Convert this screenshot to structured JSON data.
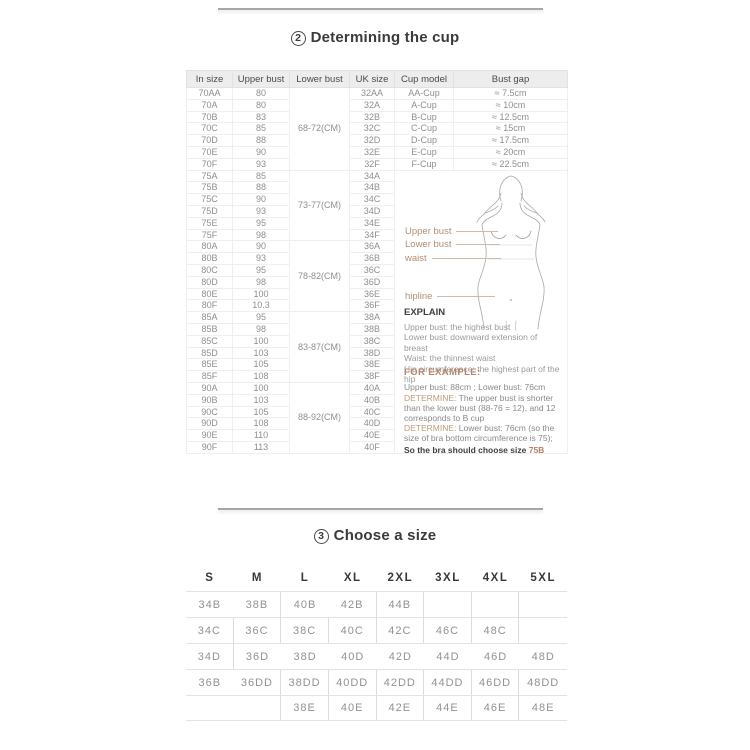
{
  "titles": {
    "cup_num": "2",
    "cup_text": "Determining the cup",
    "size_num": "3",
    "size_text": "Choose a size"
  },
  "cup_table": {
    "headers": [
      "In size",
      "Upper bust",
      "Lower bust",
      "UK size",
      "Cup model",
      "Bust gap"
    ],
    "groups": [
      {
        "lower_bust": "68-72(CM)",
        "rows": [
          {
            "in_size": "70AA",
            "upper_bust": "80",
            "uk_size": "32AA",
            "cup_model": "AA-Cup",
            "bust_gap": "≈  7.5cm"
          },
          {
            "in_size": "70A",
            "upper_bust": "80",
            "uk_size": "32A",
            "cup_model": "A-Cup",
            "bust_gap": "≈  10cm"
          },
          {
            "in_size": "70B",
            "upper_bust": "83",
            "uk_size": "32B",
            "cup_model": "B-Cup",
            "bust_gap": "≈  12.5cm"
          },
          {
            "in_size": "70C",
            "upper_bust": "85",
            "uk_size": "32C",
            "cup_model": "C-Cup",
            "bust_gap": "≈  15cm"
          },
          {
            "in_size": "70D",
            "upper_bust": "88",
            "uk_size": "32D",
            "cup_model": "D-Cup",
            "bust_gap": "≈  17.5cm"
          },
          {
            "in_size": "70E",
            "upper_bust": "90",
            "uk_size": "32E",
            "cup_model": "E-Cup",
            "bust_gap": "≈  20cm"
          },
          {
            "in_size": "70F",
            "upper_bust": "93",
            "uk_size": "32F",
            "cup_model": "F-Cup",
            "bust_gap": "≈  22.5cm"
          }
        ]
      },
      {
        "lower_bust": "73-77(CM)",
        "rows": [
          {
            "in_size": "75A",
            "upper_bust": "85",
            "uk_size": "34A"
          },
          {
            "in_size": "75B",
            "upper_bust": "88",
            "uk_size": "34B"
          },
          {
            "in_size": "75C",
            "upper_bust": "90",
            "uk_size": "34C"
          },
          {
            "in_size": "75D",
            "upper_bust": "93",
            "uk_size": "34D"
          },
          {
            "in_size": "75E",
            "upper_bust": "95",
            "uk_size": "34E"
          },
          {
            "in_size": "75F",
            "upper_bust": "98",
            "uk_size": "34F"
          }
        ]
      },
      {
        "lower_bust": "78-82(CM)",
        "rows": [
          {
            "in_size": "80A",
            "upper_bust": "90",
            "uk_size": "36A"
          },
          {
            "in_size": "80B",
            "upper_bust": "93",
            "uk_size": "36B"
          },
          {
            "in_size": "80C",
            "upper_bust": "95",
            "uk_size": "36C"
          },
          {
            "in_size": "80D",
            "upper_bust": "98",
            "uk_size": "36D"
          },
          {
            "in_size": "80E",
            "upper_bust": "100",
            "uk_size": "36E"
          },
          {
            "in_size": "80F",
            "upper_bust": "10.3",
            "uk_size": "36F"
          }
        ]
      },
      {
        "lower_bust": "83-87(CM)",
        "rows": [
          {
            "in_size": "85A",
            "upper_bust": "95",
            "uk_size": "38A"
          },
          {
            "in_size": "85B",
            "upper_bust": "98",
            "uk_size": "38B"
          },
          {
            "in_size": "85C",
            "upper_bust": "100",
            "uk_size": "38C"
          },
          {
            "in_size": "85D",
            "upper_bust": "103",
            "uk_size": "38D"
          },
          {
            "in_size": "85E",
            "upper_bust": "105",
            "uk_size": "38E"
          },
          {
            "in_size": "85F",
            "upper_bust": "108",
            "uk_size": "38F"
          }
        ]
      },
      {
        "lower_bust": "88-92(CM)",
        "rows": [
          {
            "in_size": "90A",
            "upper_bust": "100",
            "uk_size": "40A"
          },
          {
            "in_size": "90B",
            "upper_bust": "103",
            "uk_size": "40B"
          },
          {
            "in_size": "90C",
            "upper_bust": "105",
            "uk_size": "40C"
          },
          {
            "in_size": "90D",
            "upper_bust": "108",
            "uk_size": "40D"
          },
          {
            "in_size": "90E",
            "upper_bust": "110",
            "uk_size": "40E"
          },
          {
            "in_size": "90F",
            "upper_bust": "113",
            "uk_size": "40F"
          }
        ]
      }
    ]
  },
  "panel": {
    "labels": [
      "Upper bust",
      "Lower bust",
      "waist",
      "hipline"
    ],
    "explain": {
      "title": "EXPLAIN",
      "lines": [
        "Upper bust: the highest bust",
        "Lower bust: downward extension of breast",
        "Waist: the thinnest waist",
        "Hip circumference: the highest part of the hip"
      ]
    },
    "example": {
      "title": "FOR EXAMPLE:",
      "intro": "Upper bust:  88cm ; Lower bust:  76cm",
      "determine_label": "DETERMINE:",
      "steps": [
        "The upper bust is shorter than the lower bust (88-76 = 12), and 12 corresponds to B cup",
        "Lower bust: 76cm (so the size of bra bottom circumference is 75);"
      ],
      "conclusion": "So the bra should choose size",
      "conclusion_highlight": "75B"
    }
  },
  "size_table": {
    "headers": [
      "S",
      "M",
      "L",
      "XL",
      "2XL",
      "3XL",
      "4XL",
      "5XL"
    ],
    "rows": [
      [
        "34B",
        "38B",
        "40B",
        "42B",
        "44B",
        "",
        "",
        ""
      ],
      [
        "34C",
        "36C",
        "38C",
        "40C",
        "42C",
        "46C",
        "48C",
        ""
      ],
      [
        "34D",
        "36D",
        "38D",
        "40D",
        "42D",
        "44D",
        "46D",
        "48D"
      ],
      [
        "36B",
        "36DD",
        "38DD",
        "40DD",
        "42DD",
        "44DD",
        "46DD",
        "48DD"
      ],
      [
        "",
        "",
        "38E",
        "40E",
        "42E",
        "44E",
        "46E",
        "48E"
      ]
    ]
  },
  "colors": {
    "accent_tan": "#b28e74",
    "highlight": "#b5825f",
    "title_text": "#3b3b3b",
    "table_text": "#8f8f8f",
    "header_bg": "#ededed",
    "divider": "#a6a6a6"
  }
}
